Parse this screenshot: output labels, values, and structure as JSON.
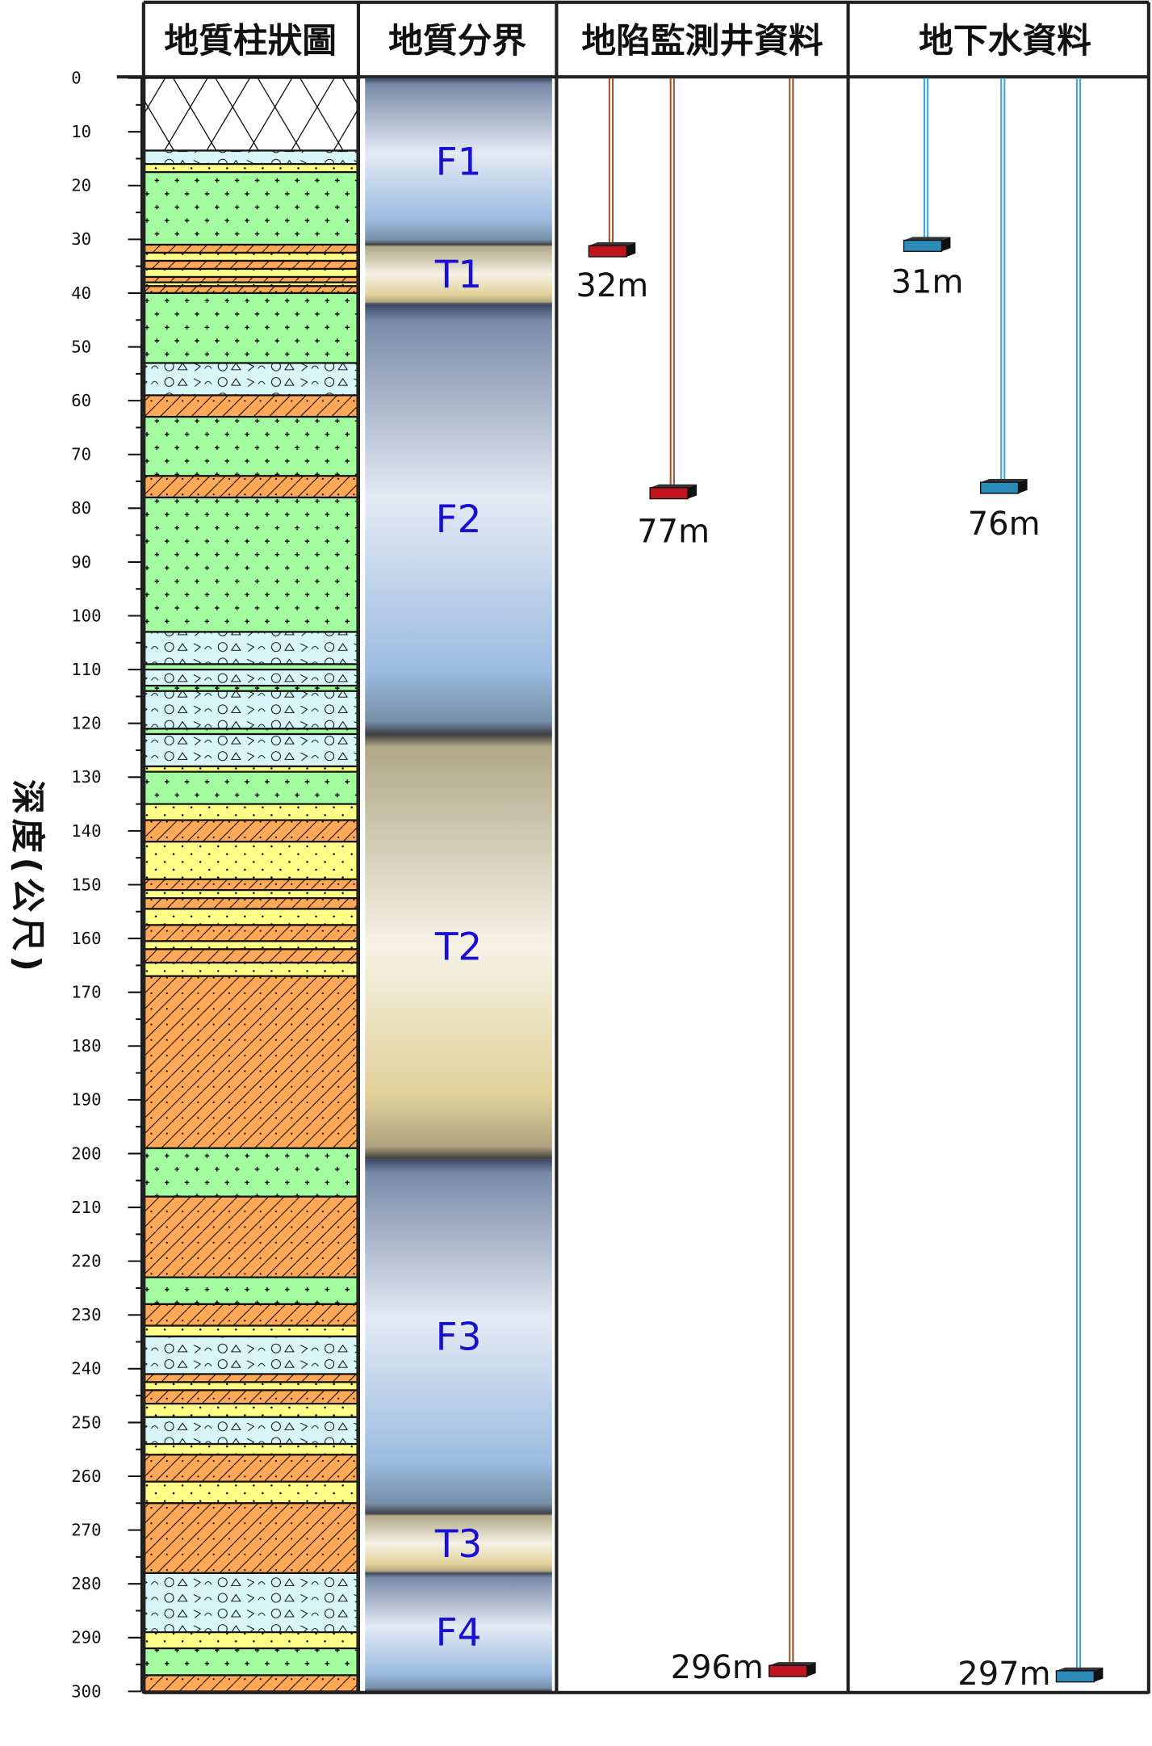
{
  "headers": {
    "column_log": "地質柱狀圖",
    "formation": "地質分界",
    "subsidence_wells": "地陷監測井資料",
    "groundwater": "地下水資料"
  },
  "y_axis": {
    "label": "深度(公尺)",
    "min": 0,
    "max": 300,
    "major_step": 10,
    "minor_step": 5
  },
  "lithology_colors": {
    "fill": "#ffffff",
    "gravel": "#d8f6f8",
    "sand": "#ffff88",
    "green": "#a4fca0",
    "clay": "#ffa858"
  },
  "layers": [
    {
      "top": 0,
      "bottom": 13.5,
      "type": "fill"
    },
    {
      "top": 13.5,
      "bottom": 16,
      "type": "gravel"
    },
    {
      "top": 16,
      "bottom": 17.5,
      "type": "sand"
    },
    {
      "top": 17.5,
      "bottom": 31,
      "type": "green"
    },
    {
      "top": 31,
      "bottom": 32.5,
      "type": "clay"
    },
    {
      "top": 32.5,
      "bottom": 34,
      "type": "sand"
    },
    {
      "top": 34,
      "bottom": 35.5,
      "type": "clay"
    },
    {
      "top": 35.5,
      "bottom": 37,
      "type": "sand"
    },
    {
      "top": 37,
      "bottom": 38,
      "type": "clay"
    },
    {
      "top": 38,
      "bottom": 38.7,
      "type": "sand"
    },
    {
      "top": 38.7,
      "bottom": 40,
      "type": "clay"
    },
    {
      "top": 40,
      "bottom": 53,
      "type": "green"
    },
    {
      "top": 53,
      "bottom": 59,
      "type": "gravel"
    },
    {
      "top": 59,
      "bottom": 63,
      "type": "clay"
    },
    {
      "top": 63,
      "bottom": 74,
      "type": "green"
    },
    {
      "top": 74,
      "bottom": 78,
      "type": "clay"
    },
    {
      "top": 78,
      "bottom": 103,
      "type": "green"
    },
    {
      "top": 103,
      "bottom": 109,
      "type": "gravel"
    },
    {
      "top": 109,
      "bottom": 110,
      "type": "green"
    },
    {
      "top": 110,
      "bottom": 113,
      "type": "gravel"
    },
    {
      "top": 113,
      "bottom": 114,
      "type": "green"
    },
    {
      "top": 114,
      "bottom": 121,
      "type": "gravel"
    },
    {
      "top": 121,
      "bottom": 122,
      "type": "green"
    },
    {
      "top": 122,
      "bottom": 128,
      "type": "gravel"
    },
    {
      "top": 128,
      "bottom": 129,
      "type": "sand"
    },
    {
      "top": 129,
      "bottom": 135,
      "type": "green"
    },
    {
      "top": 135,
      "bottom": 138,
      "type": "sand"
    },
    {
      "top": 138,
      "bottom": 142,
      "type": "clay"
    },
    {
      "top": 142,
      "bottom": 149,
      "type": "sand"
    },
    {
      "top": 149,
      "bottom": 151,
      "type": "clay"
    },
    {
      "top": 151,
      "bottom": 152.5,
      "type": "sand"
    },
    {
      "top": 152.5,
      "bottom": 154.5,
      "type": "clay"
    },
    {
      "top": 154.5,
      "bottom": 157.5,
      "type": "sand"
    },
    {
      "top": 157.5,
      "bottom": 160.5,
      "type": "clay"
    },
    {
      "top": 160.5,
      "bottom": 162,
      "type": "sand"
    },
    {
      "top": 162,
      "bottom": 164.5,
      "type": "clay"
    },
    {
      "top": 164.5,
      "bottom": 167,
      "type": "sand"
    },
    {
      "top": 167,
      "bottom": 199,
      "type": "clay"
    },
    {
      "top": 199,
      "bottom": 208,
      "type": "green"
    },
    {
      "top": 208,
      "bottom": 223,
      "type": "clay"
    },
    {
      "top": 223,
      "bottom": 228,
      "type": "green"
    },
    {
      "top": 228,
      "bottom": 232,
      "type": "clay"
    },
    {
      "top": 232,
      "bottom": 234,
      "type": "sand"
    },
    {
      "top": 234,
      "bottom": 241,
      "type": "gravel"
    },
    {
      "top": 241,
      "bottom": 242.5,
      "type": "clay"
    },
    {
      "top": 242.5,
      "bottom": 244,
      "type": "sand"
    },
    {
      "top": 244,
      "bottom": 246.5,
      "type": "clay"
    },
    {
      "top": 246.5,
      "bottom": 249,
      "type": "sand"
    },
    {
      "top": 249,
      "bottom": 254,
      "type": "gravel"
    },
    {
      "top": 254,
      "bottom": 256,
      "type": "sand"
    },
    {
      "top": 256,
      "bottom": 261,
      "type": "clay"
    },
    {
      "top": 261,
      "bottom": 265,
      "type": "sand"
    },
    {
      "top": 265,
      "bottom": 278,
      "type": "clay"
    },
    {
      "top": 278,
      "bottom": 289,
      "type": "gravel"
    },
    {
      "top": 289,
      "bottom": 292,
      "type": "sand"
    },
    {
      "top": 292,
      "bottom": 297,
      "type": "green"
    },
    {
      "top": 297,
      "bottom": 300,
      "type": "clay"
    }
  ],
  "formations": [
    {
      "name": "F1",
      "top": 0,
      "bottom": 31,
      "kind": "F"
    },
    {
      "name": "T1",
      "top": 31,
      "bottom": 42,
      "kind": "T"
    },
    {
      "name": "F2",
      "top": 42,
      "bottom": 122,
      "kind": "F"
    },
    {
      "name": "T2",
      "top": 122,
      "bottom": 201,
      "kind": "T"
    },
    {
      "name": "F3",
      "top": 201,
      "bottom": 267,
      "kind": "F"
    },
    {
      "name": "T3",
      "top": 267,
      "bottom": 278,
      "kind": "T"
    },
    {
      "name": "F4",
      "top": 278,
      "bottom": 300,
      "kind": "F"
    }
  ],
  "subsidence_wells": {
    "color": "#a0522d",
    "marker_color": "#c0141e",
    "wells": [
      {
        "depth": 32,
        "label": "32m"
      },
      {
        "depth": 77,
        "label": "77m"
      },
      {
        "depth": 296,
        "label": "296m"
      }
    ]
  },
  "groundwater_wells": {
    "color": "#3aa8e0",
    "marker_color": "#2a8ab8",
    "wells": [
      {
        "depth": 31,
        "label": "31m"
      },
      {
        "depth": 76,
        "label": "76m"
      },
      {
        "depth": 297,
        "label": "297m"
      }
    ]
  }
}
